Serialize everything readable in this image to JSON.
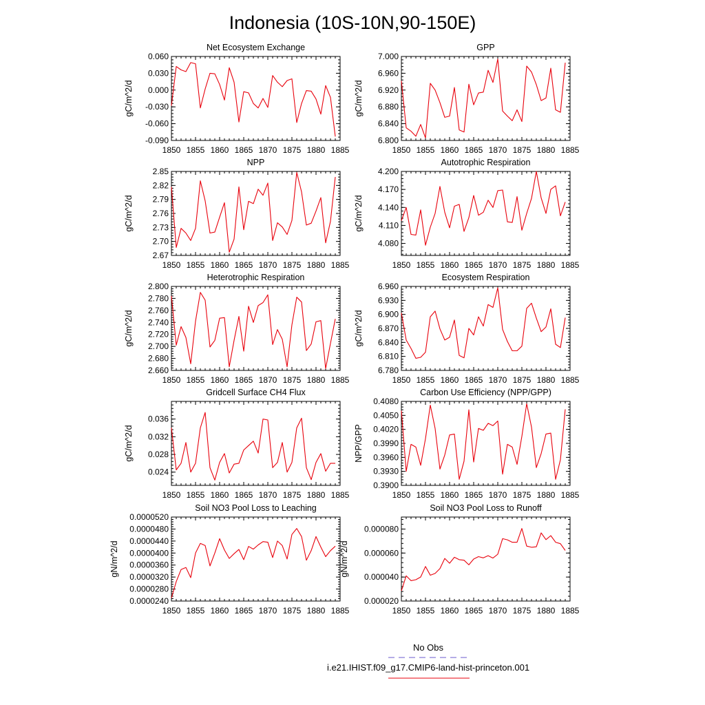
{
  "figure": {
    "title": "Indonesia (10S-10N,90-150E)",
    "legend": {
      "obs_label": "No Obs",
      "obs_color": "#6a5acd",
      "model_label": "i.e21.IHIST.f09_g17.CMIP6-land-hist-princeton.001",
      "model_color": "#e8000b"
    },
    "line_color": "#e8000b"
  },
  "chart_data": [
    {
      "type": "line",
      "title": "Net Ecosystem Exchange",
      "ylabel": "gC/m^2/d",
      "xlim": [
        1850,
        1885
      ],
      "ylim": [
        -0.09,
        0.06
      ],
      "xticks": [
        "1850",
        "1855",
        "1860",
        "1865",
        "1870",
        "1875",
        "1880",
        "1885"
      ],
      "yticks": [
        "-0.090",
        "-0.060",
        "-0.030",
        "0.000",
        "0.030",
        "0.060"
      ],
      "x": [
        1850,
        1851,
        1852,
        1853,
        1854,
        1855,
        1856,
        1857,
        1858,
        1859,
        1860,
        1861,
        1862,
        1863,
        1864,
        1865,
        1866,
        1867,
        1868,
        1869,
        1870,
        1871,
        1872,
        1873,
        1874,
        1875,
        1876,
        1877,
        1878,
        1879,
        1880,
        1881,
        1882,
        1883,
        1884
      ],
      "values": [
        -0.028,
        0.042,
        0.036,
        0.033,
        0.049,
        0.047,
        -0.032,
        0.002,
        0.03,
        0.029,
        0.01,
        -0.018,
        0.04,
        0.014,
        -0.057,
        -0.003,
        -0.005,
        -0.024,
        -0.032,
        -0.015,
        -0.031,
        0.026,
        0.014,
        0.006,
        0.017,
        0.02,
        -0.058,
        -0.024,
        -0.001,
        -0.002,
        -0.016,
        -0.043,
        0.008,
        -0.013,
        -0.083
      ]
    },
    {
      "type": "line",
      "title": "GPP",
      "ylabel": "gC/m^2/d",
      "xlim": [
        1850,
        1885
      ],
      "ylim": [
        6.8,
        7.0
      ],
      "xticks": [
        "1850",
        "1855",
        "1860",
        "1865",
        "1870",
        "1875",
        "1880",
        "1885"
      ],
      "yticks": [
        "6.800",
        "6.840",
        "6.880",
        "6.920",
        "6.960",
        "7.000"
      ],
      "x": [
        1850,
        1851,
        1852,
        1853,
        1854,
        1855,
        1856,
        1857,
        1858,
        1859,
        1860,
        1861,
        1862,
        1863,
        1864,
        1865,
        1866,
        1867,
        1868,
        1869,
        1870,
        1871,
        1872,
        1873,
        1874,
        1875,
        1876,
        1877,
        1878,
        1879,
        1880,
        1881,
        1882,
        1883,
        1884
      ],
      "values": [
        6.942,
        6.83,
        6.822,
        6.81,
        6.838,
        6.806,
        6.936,
        6.92,
        6.89,
        6.855,
        6.858,
        6.926,
        6.825,
        6.82,
        6.934,
        6.885,
        6.913,
        6.915,
        6.967,
        6.938,
        6.994,
        6.87,
        6.858,
        6.847,
        6.873,
        6.845,
        6.977,
        6.963,
        6.933,
        6.895,
        6.901,
        6.972,
        6.873,
        6.867,
        6.985
      ]
    },
    {
      "type": "line",
      "title": "NPP",
      "ylabel": "gC/m^2/d",
      "xlim": [
        1850,
        1885
      ],
      "ylim": [
        2.67,
        2.85
      ],
      "xticks": [
        "1850",
        "1855",
        "1860",
        "1865",
        "1870",
        "1875",
        "1880",
        "1885"
      ],
      "yticks": [
        "2.67",
        "2.70",
        "2.73",
        "2.76",
        "2.79",
        "2.82",
        "2.85"
      ],
      "x": [
        1850,
        1851,
        1852,
        1853,
        1854,
        1855,
        1856,
        1857,
        1858,
        1859,
        1860,
        1861,
        1862,
        1863,
        1864,
        1865,
        1866,
        1867,
        1868,
        1869,
        1870,
        1871,
        1872,
        1873,
        1874,
        1875,
        1876,
        1877,
        1878,
        1879,
        1880,
        1881,
        1882,
        1883,
        1884
      ],
      "values": [
        2.817,
        2.687,
        2.728,
        2.718,
        2.702,
        2.728,
        2.83,
        2.787,
        2.718,
        2.72,
        2.752,
        2.783,
        2.677,
        2.705,
        2.817,
        2.725,
        2.786,
        2.781,
        2.812,
        2.799,
        2.825,
        2.702,
        2.74,
        2.731,
        2.715,
        2.745,
        2.848,
        2.806,
        2.735,
        2.739,
        2.765,
        2.794,
        2.697,
        2.743,
        2.838
      ]
    },
    {
      "type": "line",
      "title": "Autotrophic Respiration",
      "ylabel": "gC/m^2/d",
      "xlim": [
        1850,
        1885
      ],
      "ylim": [
        4.06,
        4.2
      ],
      "xticks": [
        "1850",
        "1855",
        "1860",
        "1865",
        "1870",
        "1875",
        "1880",
        "1885"
      ],
      "yticks": [
        "4.080",
        "4.110",
        "4.140",
        "4.170",
        "4.200"
      ],
      "x": [
        1850,
        1851,
        1852,
        1853,
        1854,
        1855,
        1856,
        1857,
        1858,
        1859,
        1860,
        1861,
        1862,
        1863,
        1864,
        1865,
        1866,
        1867,
        1868,
        1869,
        1870,
        1871,
        1872,
        1873,
        1874,
        1875,
        1876,
        1877,
        1878,
        1879,
        1880,
        1881,
        1882,
        1883,
        1884
      ],
      "values": [
        4.118,
        4.14,
        4.095,
        4.094,
        4.136,
        4.077,
        4.107,
        4.13,
        4.175,
        4.132,
        4.106,
        4.142,
        4.145,
        4.1,
        4.123,
        4.16,
        4.127,
        4.132,
        4.152,
        4.14,
        4.168,
        4.169,
        4.116,
        4.115,
        4.158,
        4.102,
        4.13,
        4.155,
        4.2,
        4.156,
        4.13,
        4.17,
        4.176,
        4.126,
        4.149
      ]
    },
    {
      "type": "line",
      "title": "Heterotrophic Respiration",
      "ylabel": "gC/m^2/d",
      "xlim": [
        1850,
        1885
      ],
      "ylim": [
        2.66,
        2.8
      ],
      "xticks": [
        "1850",
        "1855",
        "1860",
        "1865",
        "1870",
        "1875",
        "1880",
        "1885"
      ],
      "yticks": [
        "2.660",
        "2.680",
        "2.700",
        "2.720",
        "2.740",
        "2.760",
        "2.780",
        "2.800"
      ],
      "x": [
        1850,
        1851,
        1852,
        1853,
        1854,
        1855,
        1856,
        1857,
        1858,
        1859,
        1860,
        1861,
        1862,
        1863,
        1864,
        1865,
        1866,
        1867,
        1868,
        1869,
        1870,
        1871,
        1872,
        1873,
        1874,
        1875,
        1876,
        1877,
        1878,
        1879,
        1880,
        1881,
        1882,
        1883,
        1884
      ],
      "values": [
        2.784,
        2.702,
        2.733,
        2.715,
        2.671,
        2.742,
        2.79,
        2.777,
        2.699,
        2.71,
        2.747,
        2.748,
        2.666,
        2.71,
        2.75,
        2.692,
        2.767,
        2.74,
        2.768,
        2.773,
        2.786,
        2.703,
        2.728,
        2.712,
        2.666,
        2.736,
        2.782,
        2.774,
        2.693,
        2.704,
        2.741,
        2.743,
        2.663,
        2.705,
        2.746
      ]
    },
    {
      "type": "line",
      "title": "Ecosystem Respiration",
      "ylabel": "gC/m^2/d",
      "xlim": [
        1850,
        1885
      ],
      "ylim": [
        6.78,
        6.96
      ],
      "xticks": [
        "1850",
        "1855",
        "1860",
        "1865",
        "1870",
        "1875",
        "1880",
        "1885"
      ],
      "yticks": [
        "6.780",
        "6.810",
        "6.840",
        "6.870",
        "6.900",
        "6.930",
        "6.960"
      ],
      "x": [
        1850,
        1851,
        1852,
        1853,
        1854,
        1855,
        1856,
        1857,
        1858,
        1859,
        1860,
        1861,
        1862,
        1863,
        1864,
        1865,
        1866,
        1867,
        1868,
        1869,
        1870,
        1871,
        1872,
        1873,
        1874,
        1875,
        1876,
        1877,
        1878,
        1879,
        1880,
        1881,
        1882,
        1883,
        1884
      ],
      "values": [
        6.903,
        6.845,
        6.827,
        6.806,
        6.808,
        6.819,
        6.895,
        6.907,
        6.869,
        6.845,
        6.851,
        6.888,
        6.812,
        6.807,
        6.87,
        6.856,
        6.895,
        6.875,
        6.921,
        6.915,
        6.957,
        6.868,
        6.842,
        6.822,
        6.822,
        6.832,
        6.913,
        6.924,
        6.892,
        6.863,
        6.873,
        6.912,
        6.836,
        6.829,
        6.893
      ]
    },
    {
      "type": "line",
      "title": "Gridcell Surface CH4 Flux",
      "ylabel": "gC/m^2/d",
      "xlim": [
        1850,
        1885
      ],
      "ylim": [
        0.021,
        0.04
      ],
      "xticks": [
        "1850",
        "1855",
        "1860",
        "1865",
        "1870",
        "1875",
        "1880",
        "1885"
      ],
      "yticks": [
        "0.024",
        "0.028",
        "0.032",
        "0.036"
      ],
      "x": [
        1850,
        1851,
        1852,
        1853,
        1854,
        1855,
        1856,
        1857,
        1858,
        1859,
        1860,
        1861,
        1862,
        1863,
        1864,
        1865,
        1866,
        1867,
        1868,
        1869,
        1870,
        1871,
        1872,
        1873,
        1874,
        1875,
        1876,
        1877,
        1878,
        1879,
        1880,
        1881,
        1882,
        1883,
        1884
      ],
      "values": [
        0.034,
        0.0245,
        0.026,
        0.0307,
        0.024,
        0.026,
        0.034,
        0.0375,
        0.025,
        0.0222,
        0.0262,
        0.0282,
        0.0238,
        0.0258,
        0.026,
        0.029,
        0.03,
        0.031,
        0.0283,
        0.036,
        0.0358,
        0.025,
        0.0262,
        0.0307,
        0.024,
        0.0262,
        0.034,
        0.0362,
        0.025,
        0.0223,
        0.0262,
        0.0282,
        0.0242,
        0.026,
        0.026
      ]
    },
    {
      "type": "line",
      "title": "Carbon Use Efficiency (NPP/GPP)",
      "ylabel": "NPP/GPP",
      "xlim": [
        1850,
        1885
      ],
      "ylim": [
        0.39,
        0.408
      ],
      "xticks": [
        "1850",
        "1855",
        "1860",
        "1865",
        "1870",
        "1875",
        "1880",
        "1885"
      ],
      "yticks": [
        "0.3900",
        "0.3930",
        "0.3960",
        "0.3990",
        "0.4020",
        "0.4050",
        "0.4080"
      ],
      "x": [
        1850,
        1851,
        1852,
        1853,
        1854,
        1855,
        1856,
        1857,
        1858,
        1859,
        1860,
        1861,
        1862,
        1863,
        1864,
        1865,
        1866,
        1867,
        1868,
        1869,
        1870,
        1871,
        1872,
        1873,
        1874,
        1875,
        1876,
        1877,
        1878,
        1879,
        1880,
        1881,
        1882,
        1883,
        1884
      ],
      "values": [
        0.406,
        0.393,
        0.3988,
        0.3982,
        0.3943,
        0.4,
        0.4072,
        0.4022,
        0.3935,
        0.3965,
        0.4008,
        0.401,
        0.3913,
        0.3952,
        0.4062,
        0.395,
        0.4022,
        0.4018,
        0.4033,
        0.4028,
        0.4038,
        0.3924,
        0.3988,
        0.3982,
        0.3945,
        0.4005,
        0.4075,
        0.4025,
        0.3938,
        0.3968,
        0.401,
        0.4012,
        0.3913,
        0.3955,
        0.4063
      ]
    },
    {
      "type": "line",
      "title": "Soil NO3 Pool Loss to Leaching",
      "ylabel": "gN/m^2/d",
      "xlim": [
        1850,
        1885
      ],
      "ylim": [
        2.4e-05,
        5.2e-05
      ],
      "xticks": [
        "1850",
        "1855",
        "1860",
        "1865",
        "1870",
        "1875",
        "1880",
        "1885"
      ],
      "yticks": [
        "0.0000240",
        "0.0000280",
        "0.0000320",
        "0.0000360",
        "0.0000400",
        "0.0000440",
        "0.0000480",
        "0.0000520"
      ],
      "x": [
        1850,
        1851,
        1852,
        1853,
        1854,
        1855,
        1856,
        1857,
        1858,
        1859,
        1860,
        1861,
        1862,
        1863,
        1864,
        1865,
        1866,
        1867,
        1868,
        1869,
        1870,
        1871,
        1872,
        1873,
        1874,
        1875,
        1876,
        1877,
        1878,
        1879,
        1880,
        1881,
        1882,
        1883,
        1884
      ],
      "values": [
        2.5e-05,
        3.05e-05,
        3.45e-05,
        3.52e-05,
        3.18e-05,
        4e-05,
        4.32e-05,
        4.25e-05,
        3.57e-05,
        4e-05,
        4.48e-05,
        4.1e-05,
        3.82e-05,
        3.98e-05,
        4.12e-05,
        3.78e-05,
        4.22e-05,
        4.13e-05,
        4.27e-05,
        4.38e-05,
        4.36e-05,
        3.85e-05,
        4.4e-05,
        4.25e-05,
        3.8e-05,
        4.62e-05,
        4.82e-05,
        4.55e-05,
        3.76e-05,
        4.08e-05,
        4.55e-05,
        4.2e-05,
        3.88e-05,
        4.08e-05,
        4.23e-05
      ]
    },
    {
      "type": "line",
      "title": "Soil NO3 Pool Loss to Runoff",
      "ylabel": "gN/m^2/d",
      "xlim": [
        1850,
        1885
      ],
      "ylim": [
        2e-05,
        9e-05
      ],
      "xticks": [
        "1850",
        "1855",
        "1860",
        "1865",
        "1870",
        "1875",
        "1880",
        "1885"
      ],
      "yticks": [
        "0.000020",
        "0.000040",
        "0.000060",
        "0.000080"
      ],
      "x": [
        1850,
        1851,
        1852,
        1853,
        1854,
        1855,
        1856,
        1857,
        1858,
        1859,
        1860,
        1861,
        1862,
        1863,
        1864,
        1865,
        1866,
        1867,
        1868,
        1869,
        1870,
        1871,
        1872,
        1873,
        1874,
        1875,
        1876,
        1877,
        1878,
        1879,
        1880,
        1881,
        1882,
        1883,
        1884
      ],
      "values": [
        2.85e-05,
        4.1e-05,
        3.7e-05,
        3.78e-05,
        4e-05,
        4.88e-05,
        4.15e-05,
        4.3e-05,
        4.7e-05,
        5.55e-05,
        5.15e-05,
        5.65e-05,
        5.45e-05,
        5.4e-05,
        5.02e-05,
        5.5e-05,
        5.7e-05,
        5.6e-05,
        5.78e-05,
        5.58e-05,
        5.9e-05,
        7.2e-05,
        7.1e-05,
        6.9e-05,
        6.9e-05,
        8.05e-05,
        6.58e-05,
        6.48e-05,
        6.52e-05,
        7.68e-05,
        7.12e-05,
        7.45e-05,
        6.9e-05,
        6.78e-05,
        6.22e-05
      ]
    }
  ]
}
